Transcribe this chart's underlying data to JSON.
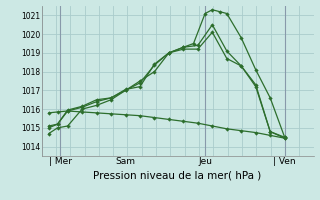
{
  "background_color": "#cce8e4",
  "grid_color": "#aacccc",
  "line_color": "#2d6e2d",
  "xlabel": "Pression niveau de la mer( hPa )",
  "ylim": [
    1013.5,
    1021.5
  ],
  "yticks": [
    1014,
    1015,
    1016,
    1017,
    1018,
    1019,
    1020,
    1021
  ],
  "ytick_fontsize": 5.5,
  "xtick_fontsize": 6.5,
  "xlabel_fontsize": 7.5,
  "day_labels": [
    "| Mer",
    "Sam",
    "Jeu",
    "| Ven"
  ],
  "day_positions": [
    1,
    5.5,
    11,
    16.5
  ],
  "vline_positions": [
    1,
    11,
    16.5
  ],
  "xlim": [
    -0.3,
    18.5
  ],
  "lines": [
    {
      "x": [
        0.2,
        0.8,
        1.5,
        2.5,
        3.5,
        4.5,
        5.5,
        6.5,
        7.5,
        8.5,
        9.5,
        10.2,
        11.0,
        11.5,
        12.0,
        12.5,
        13.5,
        14.5,
        15.5,
        16.5
      ],
      "y": [
        1014.7,
        1015.0,
        1015.1,
        1016.0,
        1016.2,
        1016.5,
        1017.0,
        1017.5,
        1018.0,
        1019.0,
        1019.3,
        1019.5,
        1021.1,
        1021.3,
        1021.2,
        1021.1,
        1019.8,
        1018.1,
        1016.6,
        1014.5
      ]
    },
    {
      "x": [
        0.2,
        0.8,
        1.5,
        2.5,
        3.5,
        4.5,
        5.5,
        6.5,
        7.5,
        8.5,
        9.5,
        10.5,
        11.5,
        12.5,
        13.5,
        14.5,
        15.5,
        16.5
      ],
      "y": [
        1015.0,
        1015.2,
        1015.9,
        1016.1,
        1016.4,
        1016.6,
        1017.0,
        1017.4,
        1018.35,
        1019.0,
        1019.3,
        1019.4,
        1020.5,
        1019.1,
        1018.3,
        1017.3,
        1014.8,
        1014.5
      ]
    },
    {
      "x": [
        0.2,
        0.8,
        1.5,
        2.5,
        3.5,
        4.5,
        5.5,
        6.5,
        7.5,
        8.5,
        9.5,
        10.5,
        11.5,
        12.5,
        13.5,
        14.5,
        15.5,
        16.5
      ],
      "y": [
        1015.1,
        1015.2,
        1015.95,
        1016.15,
        1016.5,
        1016.6,
        1017.05,
        1017.2,
        1018.4,
        1019.0,
        1019.2,
        1019.2,
        1020.1,
        1018.7,
        1018.3,
        1017.2,
        1014.8,
        1014.45
      ]
    },
    {
      "x": [
        0.2,
        0.8,
        1.5,
        2.5,
        3.5,
        4.5,
        5.5,
        6.5,
        7.5,
        8.5,
        9.5,
        10.5,
        11.5,
        12.5,
        13.5,
        14.5,
        15.5,
        16.5
      ],
      "y": [
        1015.8,
        1015.85,
        1015.9,
        1015.85,
        1015.8,
        1015.75,
        1015.7,
        1015.65,
        1015.55,
        1015.45,
        1015.35,
        1015.25,
        1015.1,
        1014.95,
        1014.85,
        1014.75,
        1014.6,
        1014.45
      ]
    }
  ]
}
